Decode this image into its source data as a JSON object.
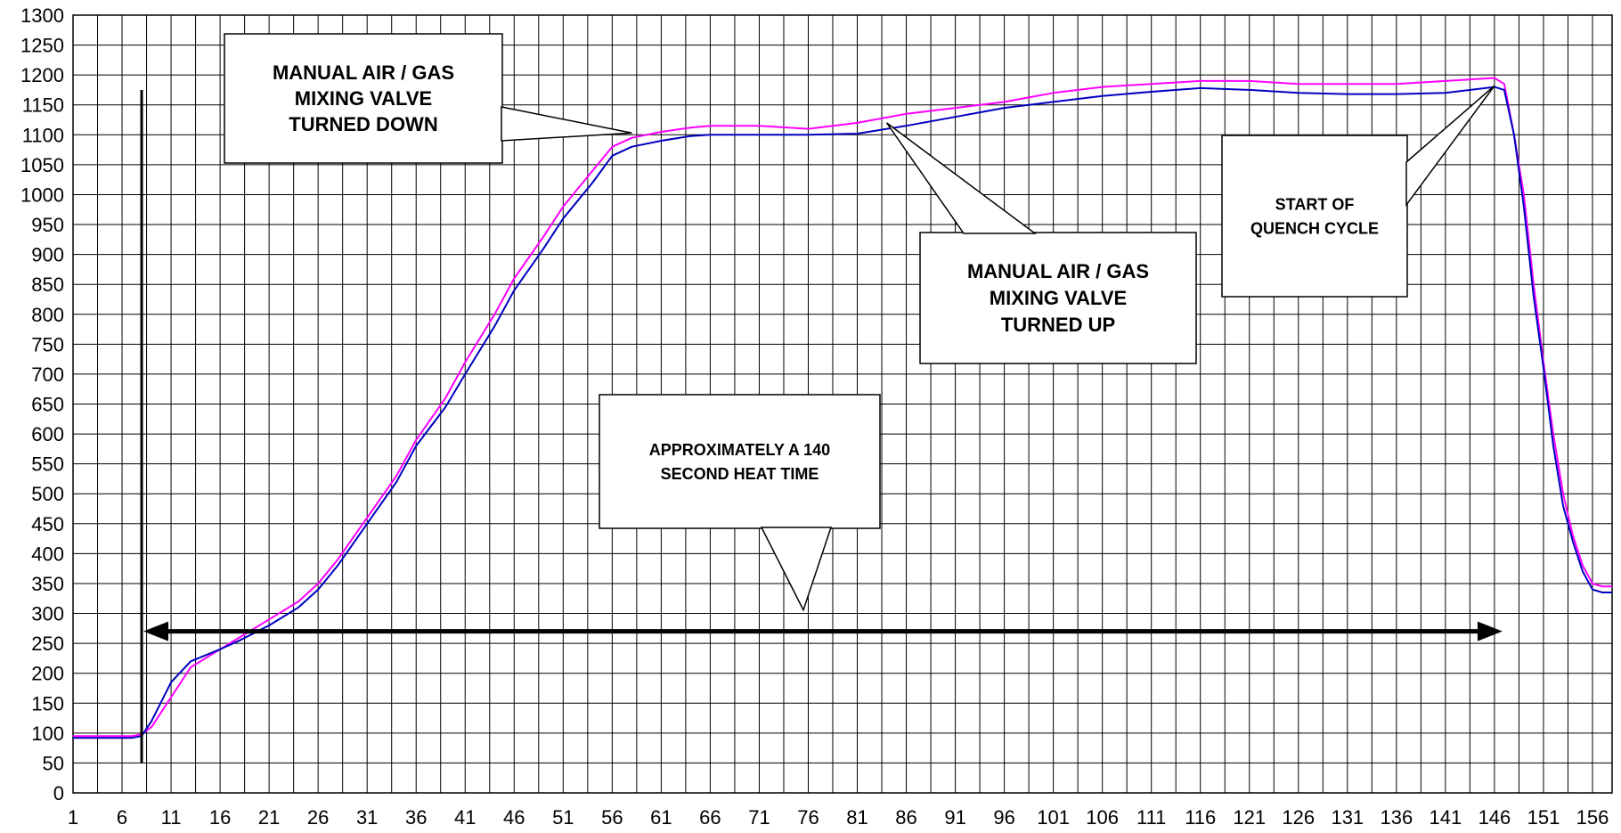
{
  "chart_data": {
    "type": "line",
    "title": "",
    "xlabel": "",
    "ylabel": "",
    "xlim": [
      1,
      158
    ],
    "ylim": [
      0,
      1300
    ],
    "y_ticks": [
      0,
      50,
      100,
      150,
      200,
      250,
      300,
      350,
      400,
      450,
      500,
      550,
      600,
      650,
      700,
      750,
      800,
      850,
      900,
      950,
      1000,
      1050,
      1100,
      1150,
      1200,
      1250,
      1300
    ],
    "x_ticks": [
      1,
      6,
      11,
      16,
      21,
      26,
      31,
      36,
      41,
      46,
      51,
      56,
      61,
      66,
      71,
      76,
      81,
      86,
      91,
      96,
      101,
      106,
      111,
      116,
      121,
      126,
      131,
      136,
      141,
      146,
      151,
      156
    ],
    "grid": true,
    "legend": "none",
    "series": [
      {
        "color": "#ff00ff",
        "x": [
          1,
          4,
          7,
          8,
          9,
          11,
          13,
          16,
          18,
          21,
          24,
          26,
          28,
          31,
          34,
          36,
          39,
          41,
          44,
          46,
          49,
          51,
          54,
          56,
          58,
          61,
          64,
          66,
          71,
          76,
          81,
          86,
          91,
          96,
          101,
          106,
          111,
          116,
          121,
          126,
          131,
          136,
          141,
          146,
          147,
          148,
          149,
          150,
          151,
          152,
          153,
          154,
          155,
          156,
          157,
          158
        ],
        "values": [
          95,
          95,
          95,
          98,
          110,
          160,
          210,
          240,
          260,
          290,
          320,
          350,
          390,
          460,
          530,
          590,
          660,
          720,
          800,
          860,
          930,
          980,
          1040,
          1080,
          1095,
          1105,
          1112,
          1115,
          1115,
          1110,
          1120,
          1135,
          1145,
          1155,
          1170,
          1180,
          1185,
          1190,
          1190,
          1185,
          1185,
          1185,
          1190,
          1195,
          1185,
          1100,
          1000,
          850,
          720,
          600,
          500,
          430,
          380,
          350,
          345,
          345
        ]
      },
      {
        "color": "#0000c0",
        "x": [
          1,
          4,
          7,
          8,
          9,
          11,
          13,
          16,
          18,
          21,
          24,
          26,
          28,
          31,
          34,
          36,
          39,
          41,
          44,
          46,
          49,
          51,
          54,
          56,
          58,
          61,
          64,
          66,
          71,
          76,
          81,
          86,
          91,
          96,
          101,
          106,
          111,
          116,
          121,
          126,
          131,
          136,
          141,
          146,
          147,
          148,
          149,
          150,
          151,
          152,
          153,
          154,
          155,
          156,
          157,
          158
        ],
        "values": [
          92,
          92,
          92,
          95,
          120,
          185,
          220,
          240,
          255,
          280,
          310,
          340,
          380,
          450,
          520,
          580,
          645,
          700,
          780,
          840,
          910,
          960,
          1020,
          1065,
          1080,
          1090,
          1098,
          1100,
          1100,
          1100,
          1102,
          1115,
          1130,
          1145,
          1155,
          1165,
          1172,
          1178,
          1175,
          1170,
          1168,
          1168,
          1170,
          1180,
          1175,
          1100,
          980,
          830,
          710,
          580,
          480,
          420,
          370,
          340,
          335,
          335
        ]
      }
    ],
    "annotations": {
      "valve_down": [
        "MANUAL AIR / GAS",
        "MIXING VALVE",
        "TURNED DOWN"
      ],
      "valve_up": [
        "MANUAL AIR / GAS",
        "MIXING VALVE",
        "TURNED UP"
      ],
      "quench": [
        "START OF",
        "QUENCH CYCLE"
      ],
      "heat_time": [
        "APPROXIMATELY A 140",
        "SECOND HEAT TIME"
      ]
    },
    "heat_span": [
      8,
      147
    ]
  }
}
